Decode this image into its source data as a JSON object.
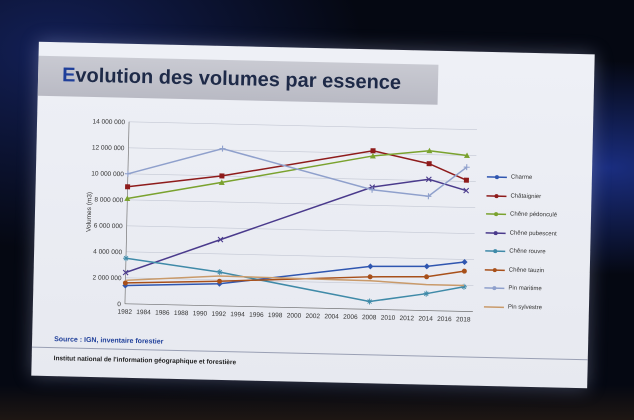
{
  "slide": {
    "title_first": "E",
    "title_rest": "volution des volumes par essence",
    "source": "Source : IGN, inventaire forestier",
    "footer": "Institut national de l'information géographique et forestière"
  },
  "colors": {
    "background": "#050812",
    "slide": "#eceef4",
    "title_band": "#c3c4cd",
    "title_text": "#1e2a48",
    "accent": "#1f3f9a"
  },
  "chart_data": {
    "type": "line",
    "title": "",
    "xlabel": "",
    "ylabel": "Volumes (m3)",
    "ylim": [
      0,
      14000000
    ],
    "yticks": [
      0,
      2000000,
      4000000,
      6000000,
      8000000,
      10000000,
      12000000,
      14000000
    ],
    "ytick_labels": [
      "0",
      "2 000 000",
      "4 000 000",
      "6 000 000",
      "8 000 000",
      "10 000 000",
      "12 000 000",
      "14 000 000"
    ],
    "xlim": [
      1982,
      2019
    ],
    "xticks": [
      1982,
      1984,
      1986,
      1988,
      1990,
      1992,
      1994,
      1996,
      1998,
      2000,
      2002,
      2004,
      2006,
      2008,
      2010,
      2012,
      2014,
      2016,
      2018
    ],
    "grid": true,
    "legend_position": "right",
    "x": [
      1982,
      1992,
      2008,
      2014,
      2018
    ],
    "series": [
      {
        "name": "Charme",
        "color": "#2f56b0",
        "marker": "diamond",
        "values": [
          1400000,
          1700000,
          3300000,
          3400000,
          3800000
        ]
      },
      {
        "name": "Châtaignier",
        "color": "#8e1b1b",
        "marker": "square",
        "values": [
          9000000,
          10000000,
          12200000,
          11300000,
          10100000
        ]
      },
      {
        "name": "Chêne pédonculé",
        "color": "#7aa22e",
        "marker": "triangle",
        "values": [
          8100000,
          9500000,
          11800000,
          12300000,
          12000000
        ]
      },
      {
        "name": "Chêne pubescent",
        "color": "#4a3a8c",
        "marker": "x",
        "values": [
          2400000,
          5100000,
          9400000,
          10100000,
          9300000
        ]
      },
      {
        "name": "Chêne rouvre",
        "color": "#3f8aa8",
        "marker": "star",
        "values": [
          3500000,
          2600000,
          600000,
          1300000,
          1900000
        ]
      },
      {
        "name": "Chêne tauzin",
        "color": "#a8501a",
        "marker": "circle",
        "values": [
          1600000,
          1900000,
          2500000,
          2600000,
          3100000
        ]
      },
      {
        "name": "Pin maritime",
        "color": "#8fa0cc",
        "marker": "plus",
        "values": [
          10000000,
          12100000,
          9200000,
          8800000,
          11100000
        ]
      },
      {
        "name": "Pin sylvestre",
        "color": "#c99a6a",
        "marker": "none",
        "values": [
          1800000,
          2300000,
          2200000,
          2000000,
          2000000
        ]
      }
    ]
  }
}
